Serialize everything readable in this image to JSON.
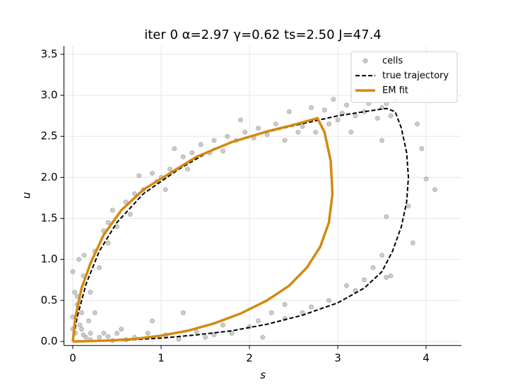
{
  "chart_data": {
    "type": "scatter",
    "title": "iter  0   α=2.97  γ=0.62  ts=2.50   J=47.4",
    "x_label": "s",
    "y_label": "u",
    "xlim": [
      -0.1,
      4.4
    ],
    "ylim": [
      -0.05,
      3.6
    ],
    "xticks": [
      0,
      1,
      2,
      3,
      4
    ],
    "yticks": [
      {
        "value": 0,
        "label": "0.0"
      },
      0.5,
      {
        "value": 1,
        "label": "1.0"
      },
      1.5,
      {
        "value": 2,
        "label": "2.0"
      },
      2.5,
      {
        "value": 3,
        "label": "3.0"
      },
      3.5
    ],
    "grid": true,
    "legend": "upper right",
    "series": [
      {
        "name": "cells",
        "style": "points",
        "color": "#aaaaaa",
        "x": [
          0,
          0.02,
          0.05,
          0.0,
          0.08,
          0.03,
          0.1,
          0.15,
          0.2,
          0.05,
          0.07,
          0.12,
          0.1,
          0.0,
          0.18,
          0.13,
          0.2,
          0.25,
          0.3,
          0.35,
          0.25,
          0.3,
          0.35,
          0.4,
          0.45,
          0.4,
          0.5,
          0.6,
          0.65,
          0.7,
          0.75,
          0.8,
          0.9,
          0.95,
          1.0,
          1.05,
          1.1,
          1.15,
          1.25,
          1.3,
          1.35,
          1.45,
          1.55,
          1.6,
          1.7,
          1.75,
          1.85,
          1.9,
          1.95,
          2.05,
          2.1,
          2.2,
          2.3,
          2.4,
          2.45,
          2.55,
          2.6,
          2.7,
          2.75,
          2.85,
          2.9,
          2.95,
          3.0,
          3.05,
          3.1,
          3.15,
          3.2,
          3.3,
          3.35,
          3.45,
          3.5,
          3.55,
          3.6,
          3.65,
          3.5,
          3.9,
          3.95,
          4.0,
          4.1,
          3.8,
          3.85,
          3.55,
          3.5,
          3.6,
          3.4,
          3.3,
          3.55,
          3.2,
          3.1,
          2.9,
          2.7,
          2.6,
          2.4,
          2.25,
          2.4,
          2.1,
          2.0,
          1.8,
          1.7,
          1.5,
          1.4,
          1.2,
          1.25,
          1.05,
          0.9,
          0.85,
          0.7,
          0.6,
          0.5,
          0.45,
          0.4,
          0.2,
          0.12,
          0.55,
          1.6,
          2.15
        ],
        "values": [
          0.85,
          0.6,
          0.45,
          0.3,
          0.2,
          0.1,
          0.15,
          0.05,
          0.1,
          0.55,
          1.0,
          0.8,
          0.35,
          0.15,
          0.25,
          1.05,
          0.6,
          0.35,
          0.05,
          0.1,
          1.1,
          0.9,
          1.35,
          1.2,
          1.6,
          1.45,
          1.4,
          1.7,
          1.55,
          1.8,
          2.02,
          1.85,
          2.05,
          1.95,
          2.0,
          1.85,
          2.1,
          2.35,
          2.25,
          2.1,
          2.3,
          2.4,
          2.3,
          2.45,
          2.32,
          2.5,
          2.45,
          2.7,
          2.55,
          2.48,
          2.6,
          2.52,
          2.65,
          2.45,
          2.8,
          2.55,
          2.62,
          2.85,
          2.55,
          2.82,
          2.65,
          2.95,
          2.7,
          2.78,
          2.88,
          2.55,
          2.75,
          2.8,
          2.9,
          2.72,
          2.85,
          2.9,
          2.75,
          2.95,
          2.45,
          2.65,
          2.35,
          1.98,
          1.85,
          1.65,
          1.2,
          1.52,
          1.05,
          0.8,
          0.9,
          0.75,
          0.78,
          0.62,
          0.68,
          0.5,
          0.42,
          0.35,
          0.28,
          0.35,
          0.45,
          0.25,
          0.18,
          0.1,
          0.2,
          0.05,
          0.12,
          0.03,
          0.35,
          0.08,
          0.25,
          0.1,
          0.05,
          0.02,
          0.1,
          0.01,
          0.06,
          0.02,
          0.08,
          0.15,
          0.08,
          0.05
        ]
      },
      {
        "name": "true trajectory",
        "style": "dashed",
        "color": "#000000",
        "x": [
          0,
          0.05,
          0.15,
          0.3,
          0.5,
          0.8,
          1.2,
          1.6,
          2.0,
          2.5,
          3.0,
          3.3,
          3.55,
          3.65,
          3.72,
          3.78,
          3.8,
          3.78,
          3.72,
          3.62,
          3.5,
          3.3,
          3.0,
          2.6,
          2.2,
          1.8,
          1.4,
          1.0,
          0.6,
          0.3,
          0
        ],
        "values": [
          0,
          0.3,
          0.7,
          1.1,
          1.45,
          1.8,
          2.1,
          2.35,
          2.5,
          2.63,
          2.75,
          2.8,
          2.84,
          2.8,
          2.6,
          2.3,
          2.0,
          1.7,
          1.4,
          1.1,
          0.85,
          0.65,
          0.47,
          0.32,
          0.21,
          0.13,
          0.08,
          0.04,
          0.015,
          0.005,
          0
        ]
      },
      {
        "name": "EM fit",
        "style": "solid",
        "color": "#d4890e",
        "x": [
          0,
          0.03,
          0.1,
          0.2,
          0.35,
          0.55,
          0.8,
          1.1,
          1.4,
          1.8,
          2.2,
          2.5,
          2.77,
          2.85,
          2.92,
          2.94,
          2.9,
          2.8,
          2.65,
          2.45,
          2.2,
          1.9,
          1.6,
          1.3,
          1.0,
          0.7,
          0.4,
          0.1,
          0
        ],
        "values": [
          0,
          0.3,
          0.65,
          0.95,
          1.3,
          1.6,
          1.85,
          2.05,
          2.25,
          2.43,
          2.56,
          2.64,
          2.72,
          2.55,
          2.2,
          1.8,
          1.45,
          1.15,
          0.9,
          0.68,
          0.5,
          0.34,
          0.22,
          0.13,
          0.07,
          0.03,
          0.01,
          0.001,
          0
        ]
      }
    ]
  }
}
